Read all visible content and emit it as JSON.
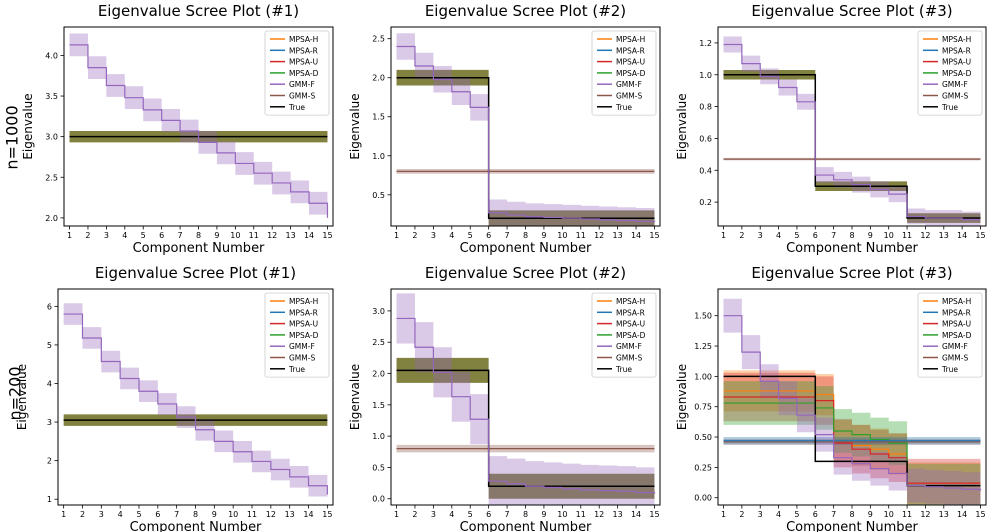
{
  "row_labels": [
    "n=1000",
    "n=200"
  ],
  "legend_labels": [
    "MPSA-H",
    "MPSA-R",
    "MPSA-U",
    "MPSA-D",
    "GMM-F",
    "GMM-S",
    "True"
  ],
  "colors": {
    "MPSA-H": "#ff7f0e",
    "MPSA-R": "#1f77b4",
    "MPSA-U": "#d62728",
    "MPSA-D": "#2ca02c",
    "GMM-F": "#9467bd",
    "GMM-S": "#8c564b",
    "True": "#000000",
    "olive_band": "#6b6b1f"
  },
  "chart_data": [
    {
      "type": "line",
      "id": "r1c1",
      "row": "n=1000",
      "title": "Eigenvalue Scree Plot (#1)",
      "xlabel": "Component Number",
      "ylabel": "Eigenvalue",
      "x": [
        1,
        2,
        3,
        4,
        5,
        6,
        7,
        8,
        9,
        10,
        11,
        12,
        13,
        14,
        15
      ],
      "xticks": [
        "1",
        "2",
        "3",
        "4",
        "5",
        "6",
        "7",
        "8",
        "9",
        "10",
        "11",
        "12",
        "13",
        "14",
        "15"
      ],
      "ylim": [
        1.9,
        4.35
      ],
      "yticks": [
        "2.0",
        "2.5",
        "3.0",
        "3.5",
        "4.0"
      ],
      "ytick_values": [
        2.0,
        2.5,
        3.0,
        3.5,
        4.0
      ],
      "series": [
        {
          "name": "True",
          "values": [
            3,
            3,
            3,
            3,
            3,
            3,
            3,
            3,
            3,
            3,
            3,
            3,
            3,
            3,
            3
          ],
          "band": 0.07,
          "band_color": "olive_band"
        },
        {
          "name": "GMM-F",
          "values": [
            4.13,
            3.85,
            3.63,
            3.48,
            3.33,
            3.2,
            3.07,
            2.93,
            2.8,
            2.67,
            2.55,
            2.43,
            2.32,
            2.18,
            2.0
          ],
          "band": 0.14
        }
      ]
    },
    {
      "type": "line",
      "id": "r1c2",
      "row": "n=1000",
      "title": "Eigenvalue Scree Plot (#2)",
      "xlabel": "Component Number",
      "ylabel": "Eigenvalue",
      "x": [
        1,
        2,
        3,
        4,
        5,
        6,
        7,
        8,
        9,
        10,
        11,
        12,
        13,
        14,
        15
      ],
      "xticks": [
        "1",
        "2",
        "3",
        "4",
        "5",
        "6",
        "7",
        "8",
        "9",
        "10",
        "11",
        "12",
        "13",
        "14",
        "15"
      ],
      "ylim": [
        0.1,
        2.65
      ],
      "yticks": [
        "0.5",
        "1.0",
        "1.5",
        "2.0",
        "2.5"
      ],
      "ytick_values": [
        0.5,
        1.0,
        1.5,
        2.0,
        2.5
      ],
      "series": [
        {
          "name": "GMM-S",
          "values": [
            0.8,
            0.8,
            0.8,
            0.8,
            0.8,
            0.8,
            0.8,
            0.8,
            0.8,
            0.8,
            0.8,
            0.8,
            0.8,
            0.8,
            0.8
          ],
          "band": 0.03
        },
        {
          "name": "True",
          "values": [
            2,
            2,
            2,
            2,
            2,
            0.2,
            0.2,
            0.2,
            0.2,
            0.2,
            0.2,
            0.2,
            0.2,
            0.2,
            0.2
          ],
          "band": 0.1,
          "band_color": "olive_band"
        },
        {
          "name": "GMM-F",
          "values": [
            2.4,
            2.15,
            1.98,
            1.82,
            1.62,
            0.27,
            0.24,
            0.22,
            0.21,
            0.2,
            0.19,
            0.18,
            0.17,
            0.16,
            0.15
          ],
          "band": 0.17
        }
      ]
    },
    {
      "type": "line",
      "id": "r1c3",
      "row": "n=1000",
      "title": "Eigenvalue Scree Plot (#3)",
      "xlabel": "Component Number",
      "ylabel": "Eigenvalue",
      "x": [
        1,
        2,
        3,
        4,
        5,
        6,
        7,
        8,
        9,
        10,
        11,
        12,
        13,
        14,
        15
      ],
      "xticks": [
        "1",
        "2",
        "3",
        "4",
        "5",
        "6",
        "7",
        "8",
        "9",
        "10",
        "11",
        "12",
        "13",
        "14",
        "15"
      ],
      "ylim": [
        0.05,
        1.3
      ],
      "yticks": [
        "0.2",
        "0.4",
        "0.6",
        "0.8",
        "1.0",
        "1.2"
      ],
      "ytick_values": [
        0.2,
        0.4,
        0.6,
        0.8,
        1.0,
        1.2
      ],
      "series": [
        {
          "name": "GMM-S",
          "values": [
            0.47,
            0.47,
            0.47,
            0.47,
            0.47,
            0.47,
            0.47,
            0.47,
            0.47,
            0.47,
            0.47,
            0.47,
            0.47,
            0.47,
            0.47
          ],
          "band": 0.008
        },
        {
          "name": "True",
          "values": [
            1,
            1,
            1,
            1,
            1,
            0.3,
            0.3,
            0.3,
            0.3,
            0.3,
            0.1,
            0.1,
            0.1,
            0.1,
            0.1
          ],
          "band": 0.03,
          "band_color": "olive_band"
        },
        {
          "name": "GMM-F",
          "values": [
            1.19,
            1.07,
            0.99,
            0.92,
            0.83,
            0.37,
            0.34,
            0.31,
            0.28,
            0.25,
            0.11,
            0.1,
            0.1,
            0.09,
            0.09
          ],
          "band": 0.05
        }
      ]
    },
    {
      "type": "line",
      "id": "r2c1",
      "row": "n=200",
      "title": "Eigenvalue Scree Plot (#1)",
      "xlabel": "Component Number",
      "ylabel": "Eigenvalue",
      "x": [
        1,
        2,
        3,
        4,
        5,
        6,
        7,
        8,
        9,
        10,
        11,
        12,
        13,
        14,
        15
      ],
      "xticks": [
        "1",
        "2",
        "3",
        "4",
        "5",
        "6",
        "7",
        "8",
        "9",
        "10",
        "11",
        "12",
        "13",
        "14",
        "15"
      ],
      "ylim": [
        0.85,
        6.45
      ],
      "yticks": [
        "1",
        "2",
        "3",
        "4",
        "5",
        "6"
      ],
      "ytick_values": [
        1,
        2,
        3,
        4,
        5,
        6
      ],
      "series": [
        {
          "name": "True",
          "values": [
            3.05,
            3.05,
            3.05,
            3.05,
            3.05,
            3.05,
            3.05,
            3.05,
            3.05,
            3.05,
            3.05,
            3.05,
            3.05,
            3.05,
            3.05
          ],
          "band": 0.15,
          "band_color": "olive_band"
        },
        {
          "name": "GMM-F",
          "values": [
            5.8,
            5.18,
            4.57,
            4.13,
            3.8,
            3.47,
            3.13,
            2.8,
            2.5,
            2.23,
            1.98,
            1.77,
            1.58,
            1.35,
            1.12
          ],
          "band": 0.28
        }
      ]
    },
    {
      "type": "line",
      "id": "r2c2",
      "row": "n=200",
      "title": "Eigenvalue Scree Plot (#2)",
      "xlabel": "Component Number",
      "ylabel": "Eigenvalue",
      "x": [
        1,
        2,
        3,
        4,
        5,
        6,
        7,
        8,
        9,
        10,
        11,
        12,
        13,
        14,
        15
      ],
      "xticks": [
        "1",
        "2",
        "3",
        "4",
        "5",
        "6",
        "7",
        "8",
        "9",
        "10",
        "11",
        "12",
        "13",
        "14",
        "15"
      ],
      "ylim": [
        -0.1,
        3.35
      ],
      "yticks": [
        "0.0",
        "0.5",
        "1.0",
        "1.5",
        "2.0",
        "2.5",
        "3.0"
      ],
      "ytick_values": [
        0.0,
        0.5,
        1.0,
        1.5,
        2.0,
        2.5,
        3.0
      ],
      "series": [
        {
          "name": "GMM-S",
          "values": [
            0.8,
            0.8,
            0.8,
            0.8,
            0.8,
            0.8,
            0.8,
            0.8,
            0.8,
            0.8,
            0.8,
            0.8,
            0.8,
            0.8,
            0.8
          ],
          "band": 0.06
        },
        {
          "name": "True",
          "values": [
            2.05,
            2.05,
            2.05,
            2.05,
            2.05,
            0.2,
            0.2,
            0.2,
            0.2,
            0.2,
            0.2,
            0.2,
            0.2,
            0.2,
            0.2
          ],
          "band": 0.2,
          "band_color": "olive_band"
        },
        {
          "name": "GMM-F",
          "values": [
            2.88,
            2.42,
            2.02,
            1.63,
            1.27,
            0.28,
            0.24,
            0.2,
            0.18,
            0.16,
            0.14,
            0.13,
            0.12,
            0.1,
            0.08
          ],
          "band": 0.4
        }
      ]
    },
    {
      "type": "line",
      "id": "r2c3",
      "row": "n=200",
      "title": "Eigenvalue Scree Plot (#3)",
      "xlabel": "Component Number",
      "ylabel": "Eigenvalue",
      "x": [
        1,
        2,
        3,
        4,
        5,
        6,
        7,
        8,
        9,
        10,
        11,
        12,
        13,
        14,
        15
      ],
      "xticks": [
        "1",
        "2",
        "3",
        "4",
        "5",
        "6",
        "7",
        "8",
        "9",
        "10",
        "11",
        "12",
        "13",
        "14",
        "15"
      ],
      "ylim": [
        -0.06,
        1.72
      ],
      "yticks": [
        "0.00",
        "0.25",
        "0.50",
        "0.75",
        "1.00",
        "1.25",
        "1.50"
      ],
      "ytick_values": [
        0.0,
        0.25,
        0.5,
        0.75,
        1.0,
        1.25,
        1.5
      ],
      "series": [
        {
          "name": "MPSA-H",
          "values": [
            0.88,
            0.88,
            0.88,
            0.88,
            0.88,
            0.85,
            0.47,
            0.43,
            0.4,
            0.36,
            0.12,
            0.12,
            0.12,
            0.12,
            0.12
          ],
          "band": 0.17
        },
        {
          "name": "MPSA-U",
          "values": [
            0.83,
            0.83,
            0.83,
            0.83,
            0.83,
            0.8,
            0.45,
            0.4,
            0.36,
            0.33,
            0.12,
            0.12,
            0.12,
            0.12,
            0.12
          ],
          "band": 0.2
        },
        {
          "name": "MPSA-D",
          "values": [
            0.78,
            0.78,
            0.78,
            0.78,
            0.78,
            0.74,
            0.55,
            0.52,
            0.48,
            0.45,
            0.1,
            0.1,
            0.1,
            0.1,
            0.1
          ],
          "band": 0.18
        },
        {
          "name": "GMM-S",
          "values": [
            0.46,
            0.46,
            0.46,
            0.46,
            0.46,
            0.46,
            0.46,
            0.46,
            0.46,
            0.46,
            0.46,
            0.46,
            0.46,
            0.46,
            0.46
          ],
          "band": 0.025
        },
        {
          "name": "MPSA-R",
          "values": [
            0.47,
            0.47,
            0.47,
            0.47,
            0.47,
            0.47,
            0.47,
            0.47,
            0.47,
            0.47,
            0.47,
            0.47,
            0.47,
            0.47,
            0.47
          ],
          "band": 0.03
        },
        {
          "name": "True",
          "values": [
            1,
            1,
            1,
            1,
            1,
            0.3,
            0.3,
            0.3,
            0.3,
            0.3,
            0.1,
            0.1,
            0.1,
            0.1,
            0.1
          ]
        },
        {
          "name": "GMM-F",
          "values": [
            1.5,
            1.2,
            0.96,
            0.82,
            0.68,
            0.52,
            0.33,
            0.28,
            0.24,
            0.2,
            0.1,
            0.09,
            0.08,
            0.07,
            0.06
          ],
          "band": 0.14
        }
      ]
    }
  ]
}
